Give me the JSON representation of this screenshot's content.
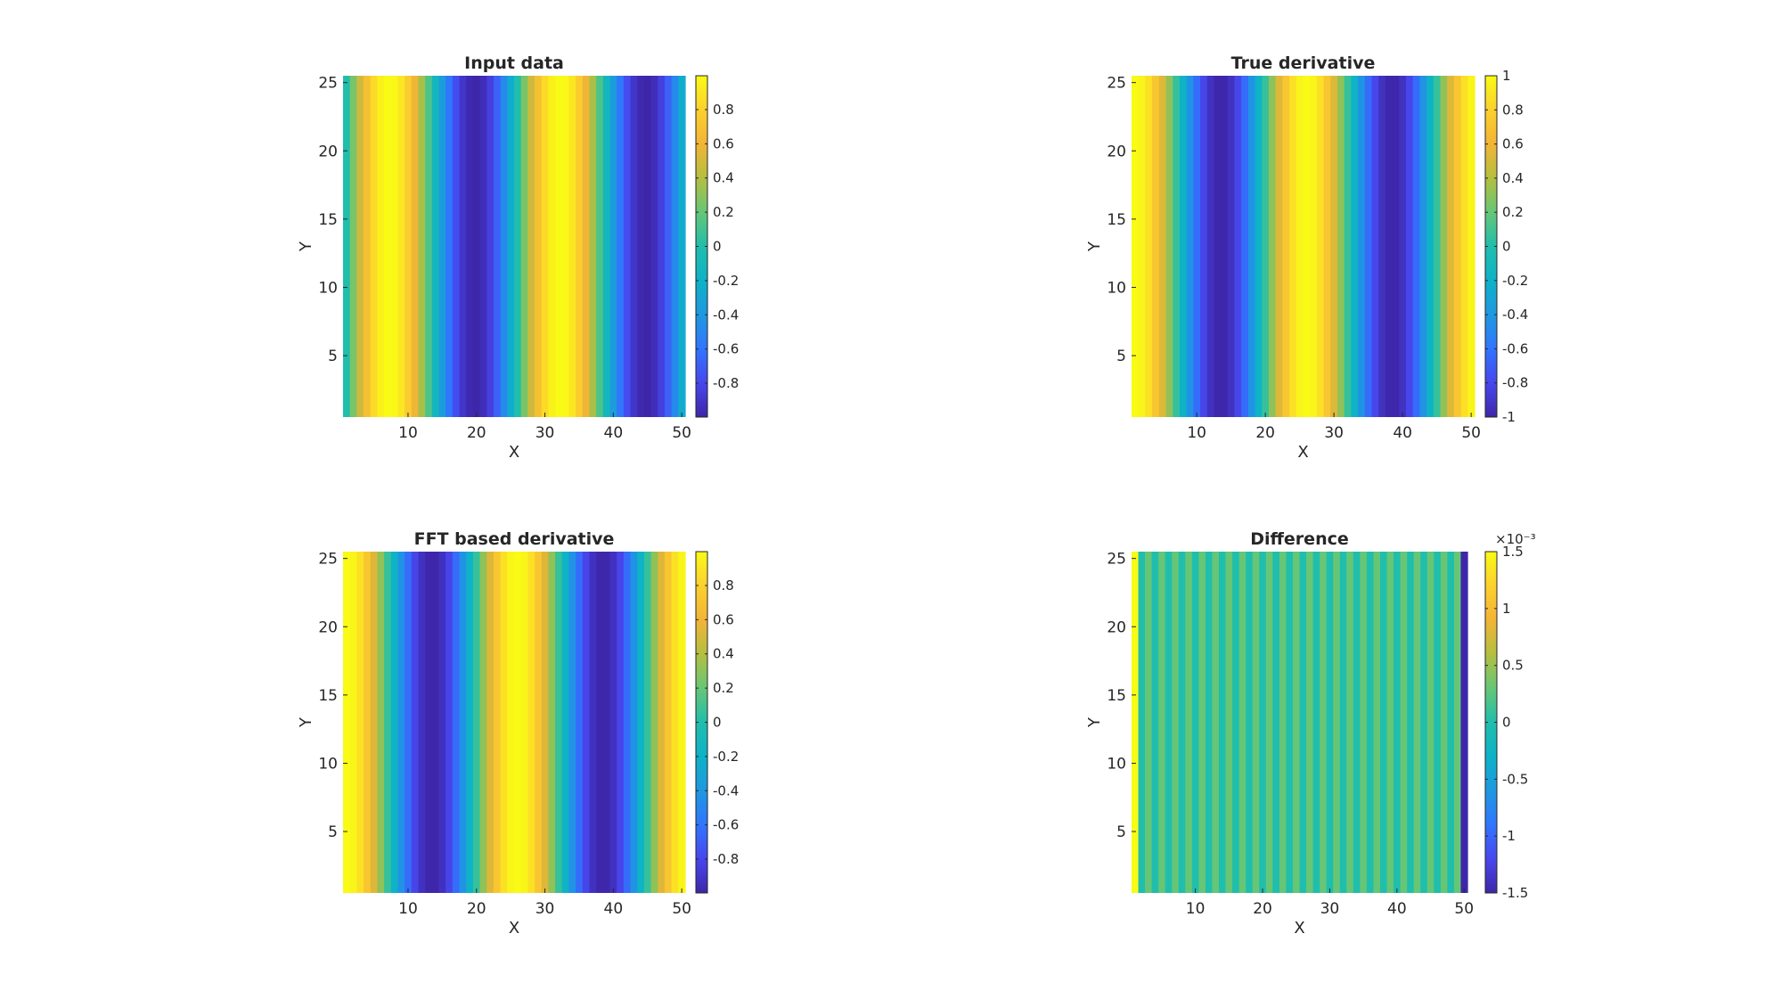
{
  "chart_data": [
    {
      "type": "heatmap",
      "title": "Input data",
      "xlabel": "X",
      "ylabel": "Y",
      "xlim": [
        0.5,
        50.5
      ],
      "ylim": [
        0.5,
        25.5
      ],
      "xticks": [
        10,
        20,
        30,
        40,
        50
      ],
      "yticks": [
        5,
        10,
        15,
        20,
        25
      ],
      "ncols": 50,
      "nrows": 25,
      "function": "sin(2*pi*(x-1)/25), constant along Y",
      "column_values": [
        0.0,
        0.249,
        0.482,
        0.685,
        0.844,
        0.951,
        0.998,
        0.982,
        0.905,
        0.771,
        0.588,
        0.368,
        0.125,
        -0.125,
        -0.368,
        -0.588,
        -0.771,
        -0.905,
        -0.982,
        -0.998,
        -0.951,
        -0.844,
        -0.685,
        -0.482,
        -0.249,
        0.0,
        0.249,
        0.482,
        0.685,
        0.844,
        0.951,
        0.998,
        0.982,
        0.905,
        0.771,
        0.588,
        0.368,
        0.125,
        -0.125,
        -0.368,
        -0.588,
        -0.771,
        -0.905,
        -0.982,
        -0.998,
        -0.951,
        -0.844,
        -0.685,
        -0.482,
        -0.249
      ],
      "clim": [
        -0.998,
        0.998
      ],
      "colormap": "parula",
      "colorbar_ticks": [
        "0.8",
        "0.6",
        "0.4",
        "0.2",
        "0",
        "-0.2",
        "-0.4",
        "-0.6",
        "-0.8"
      ],
      "colorbar_tick_values": [
        0.8,
        0.6,
        0.4,
        0.2,
        0,
        -0.2,
        -0.4,
        -0.6,
        -0.8
      ],
      "colorbar_exponent": ""
    },
    {
      "type": "heatmap",
      "title": "True derivative",
      "xlabel": "X",
      "ylabel": "Y",
      "xlim": [
        0.5,
        50.5
      ],
      "ylim": [
        0.5,
        25.5
      ],
      "xticks": [
        10,
        20,
        30,
        40,
        50
      ],
      "yticks": [
        5,
        10,
        15,
        20,
        25
      ],
      "ncols": 50,
      "nrows": 25,
      "function": "cos(2*pi*(x-1)/25), constant along Y",
      "column_values": [
        1.0,
        0.969,
        0.876,
        0.729,
        0.536,
        0.309,
        0.063,
        -0.187,
        -0.426,
        -0.637,
        -0.809,
        -0.93,
        -0.992,
        -0.992,
        -0.93,
        -0.809,
        -0.637,
        -0.426,
        -0.187,
        0.063,
        0.309,
        0.536,
        0.729,
        0.876,
        0.969,
        1.0,
        0.969,
        0.876,
        0.729,
        0.536,
        0.309,
        0.063,
        -0.187,
        -0.426,
        -0.637,
        -0.809,
        -0.93,
        -0.992,
        -0.992,
        -0.93,
        -0.809,
        -0.637,
        -0.426,
        -0.187,
        0.063,
        0.309,
        0.536,
        0.729,
        0.876,
        0.969
      ],
      "clim": [
        -1,
        1
      ],
      "colormap": "parula",
      "colorbar_ticks": [
        "1",
        "0.8",
        "0.6",
        "0.4",
        "0.2",
        "0",
        "-0.2",
        "-0.4",
        "-0.6",
        "-0.8",
        "-1"
      ],
      "colorbar_tick_values": [
        1,
        0.8,
        0.6,
        0.4,
        0.2,
        0,
        -0.2,
        -0.4,
        -0.6,
        -0.8,
        -1
      ],
      "colorbar_exponent": ""
    },
    {
      "type": "heatmap",
      "title": "FFT based derivative",
      "xlabel": "X",
      "ylabel": "Y",
      "xlim": [
        0.5,
        50.5
      ],
      "ylim": [
        0.5,
        25.5
      ],
      "xticks": [
        10,
        20,
        30,
        40,
        50
      ],
      "yticks": [
        5,
        10,
        15,
        20,
        25
      ],
      "ncols": 50,
      "nrows": 25,
      "function": "approximately cos(2*pi*(x-1)/25), constant along Y",
      "column_values": [
        0.998,
        0.969,
        0.876,
        0.729,
        0.536,
        0.309,
        0.063,
        -0.187,
        -0.426,
        -0.637,
        -0.809,
        -0.93,
        -0.992,
        -0.992,
        -0.93,
        -0.809,
        -0.637,
        -0.426,
        -0.187,
        0.063,
        0.309,
        0.536,
        0.729,
        0.876,
        0.969,
        0.998,
        0.969,
        0.876,
        0.729,
        0.536,
        0.309,
        0.063,
        -0.187,
        -0.426,
        -0.637,
        -0.809,
        -0.93,
        -0.992,
        -0.992,
        -0.93,
        -0.809,
        -0.637,
        -0.426,
        -0.187,
        0.063,
        0.309,
        0.536,
        0.729,
        0.876,
        0.969
      ],
      "clim": [
        -0.998,
        0.998
      ],
      "colormap": "parula",
      "colorbar_ticks": [
        "0.8",
        "0.6",
        "0.4",
        "0.2",
        "0",
        "-0.2",
        "-0.4",
        "-0.6",
        "-0.8"
      ],
      "colorbar_tick_values": [
        0.8,
        0.6,
        0.4,
        0.2,
        0,
        -0.2,
        -0.4,
        -0.6,
        -0.8
      ],
      "colorbar_exponent": ""
    },
    {
      "type": "heatmap",
      "title": "Difference",
      "xlabel": "X",
      "ylabel": "Y",
      "xlim": [
        0.5,
        50.5
      ],
      "ylim": [
        0.5,
        25.5
      ],
      "xticks": [
        10,
        20,
        30,
        40,
        50
      ],
      "yticks": [
        5,
        10,
        15,
        20,
        25
      ],
      "ncols": 50,
      "nrows": 25,
      "function": "difference, alternating stripes along X, constant along Y",
      "column_values": [
        0.0015,
        0.0,
        0.0003,
        0.0,
        0.0003,
        0.0,
        0.0003,
        0.0,
        0.0003,
        0.0,
        0.0003,
        0.0,
        0.0003,
        0.0,
        0.0003,
        0.0,
        0.0003,
        0.0,
        0.0003,
        0.0,
        0.0003,
        0.0,
        0.0003,
        0.0,
        0.0003,
        0.0,
        0.0003,
        0.0,
        0.0003,
        0.0,
        0.0003,
        0.0,
        0.0003,
        0.0,
        0.0003,
        0.0,
        0.0003,
        0.0,
        0.0003,
        0.0,
        0.0003,
        0.0,
        0.0003,
        0.0,
        0.0003,
        0.0,
        0.0003,
        0.0,
        0.0003,
        -0.0015
      ],
      "clim": [
        -0.0015,
        0.0015
      ],
      "colormap": "parula",
      "colorbar_ticks": [
        "1.5",
        "1",
        "0.5",
        "0",
        "-0.5",
        "-1",
        "-1.5"
      ],
      "colorbar_tick_values": [
        0.0015,
        0.001,
        0.0005,
        0,
        -0.0005,
        -0.001,
        -0.0015
      ],
      "colorbar_exponent": "×10⁻³"
    }
  ]
}
